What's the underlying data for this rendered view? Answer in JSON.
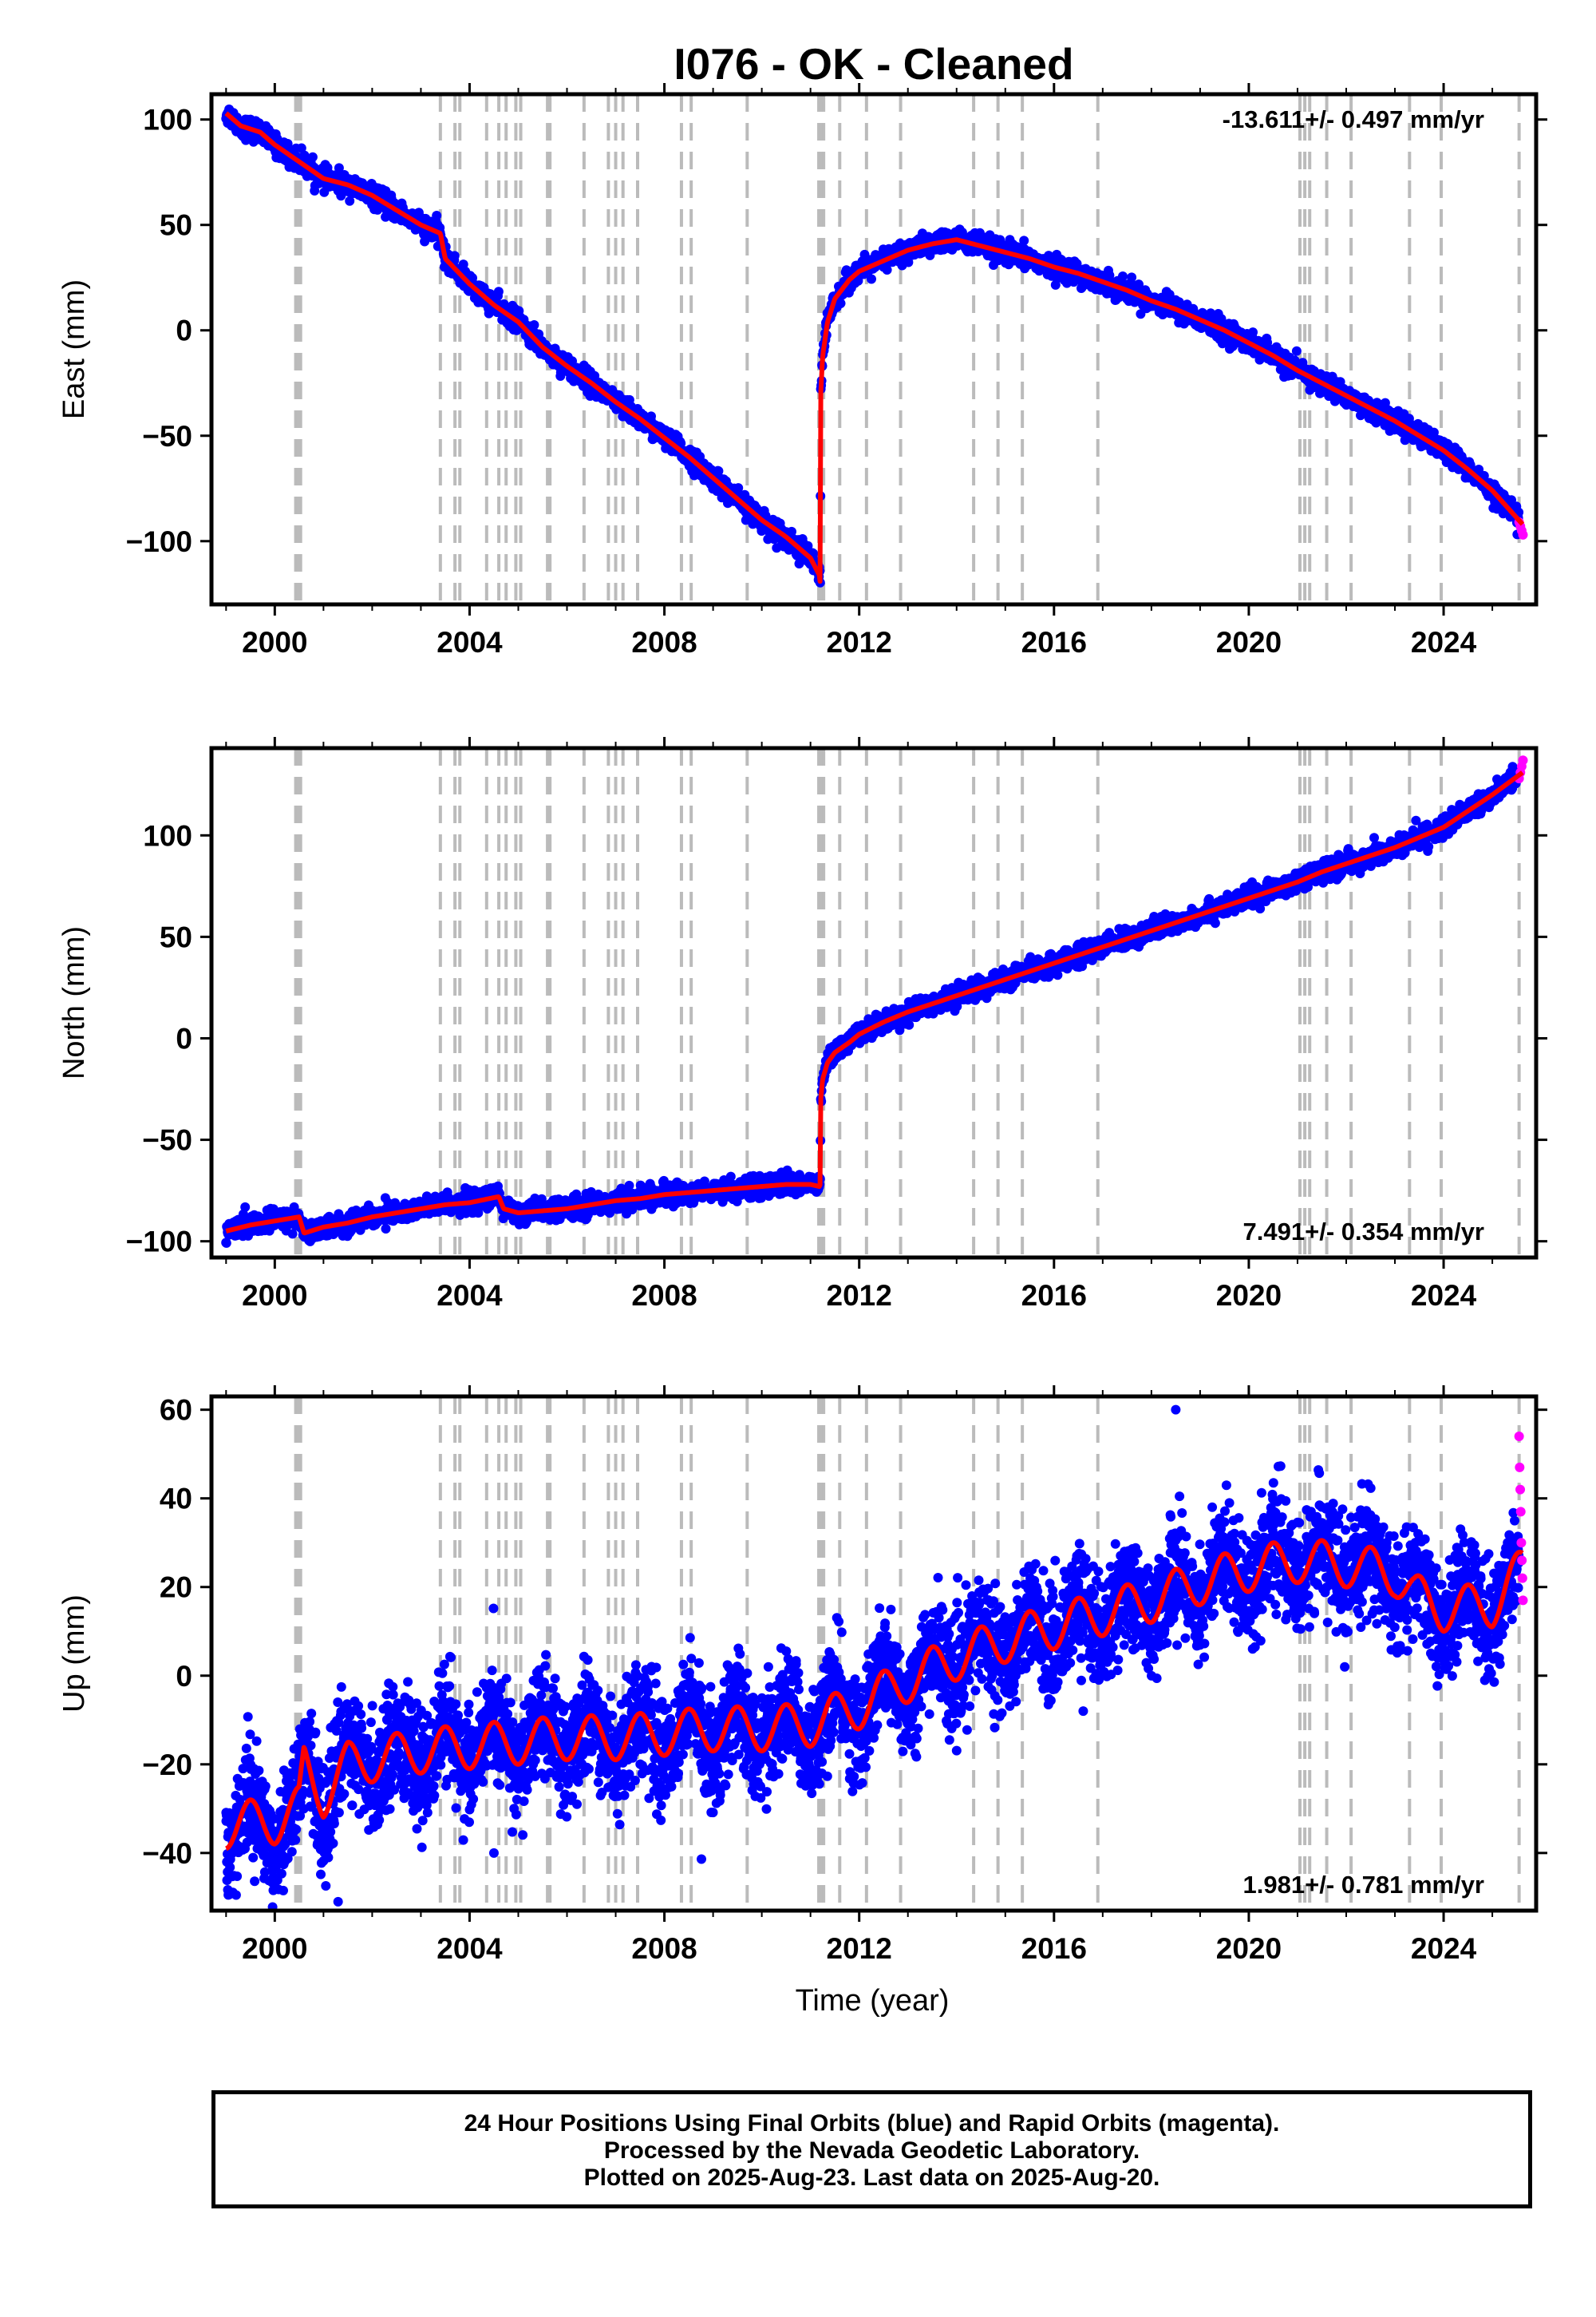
{
  "title": "I076  - OK - Cleaned",
  "xlabel": "Time (year)",
  "footer": {
    "line1": "24 Hour Positions Using Final Orbits (blue) and Rapid Orbits (magenta).",
    "line2": "Processed by the Nevada Geodetic Laboratory.",
    "line3": "Plotted on 2025-Aug-23. Last data on 2025-Aug-20."
  },
  "colors": {
    "final_orbits": "#0000ff",
    "rapid_orbits": "#ff00ff",
    "model": "#ff0000",
    "events": "#bbbbbb"
  },
  "chart_data": [
    {
      "type": "scatter",
      "component": "east",
      "ylabel": "East (mm)",
      "rate_text": "-13.611+/- 0.497 mm/yr",
      "rate_position": "top-right",
      "xlim": [
        1998.7,
        2025.9
      ],
      "ylim": [
        -130,
        112
      ],
      "xticks": [
        2000,
        2004,
        2008,
        2012,
        2016,
        2020,
        2024
      ],
      "yticks": [
        -100,
        -50,
        0,
        50,
        100
      ],
      "grid": false,
      "noise_mm": 2.5,
      "final_orbits_range": [
        1999.0,
        2025.55
      ],
      "rapid_orbits_range": [
        2025.55,
        2025.63
      ],
      "model_line": {
        "x": [
          1999.0,
          1999.3,
          1999.7,
          2000.0,
          2000.5,
          2001.0,
          2001.5,
          2002.0,
          2002.5,
          2003.0,
          2003.4,
          2003.5,
          2004.0,
          2004.5,
          2005.0,
          2005.5,
          2006.0,
          2006.5,
          2007.0,
          2007.5,
          2008.0,
          2008.5,
          2009.0,
          2009.5,
          2010.0,
          2010.5,
          2011.0,
          2011.18,
          2011.2,
          2011.21,
          2011.25,
          2011.35,
          2011.5,
          2011.8,
          2012.0,
          2012.5,
          2013.0,
          2013.5,
          2014.0,
          2014.5,
          2015.0,
          2015.5,
          2016.0,
          2016.5,
          2017.0,
          2017.5,
          2018.0,
          2018.5,
          2019.0,
          2019.5,
          2020.0,
          2020.5,
          2021.0,
          2021.5,
          2022.0,
          2022.5,
          2023.0,
          2023.5,
          2024.0,
          2024.5,
          2025.0,
          2025.62
        ],
        "y": [
          103,
          97,
          94,
          88,
          80,
          72,
          69,
          64,
          57,
          50,
          46,
          34,
          22,
          12,
          4,
          -8,
          -17,
          -25,
          -34,
          -42,
          -51,
          -60,
          -70,
          -80,
          -90,
          -98,
          -108,
          -116,
          -120,
          -30,
          -12,
          4,
          15,
          24,
          28,
          33,
          38,
          41,
          43,
          40,
          37,
          34,
          30,
          27,
          23,
          19,
          14,
          10,
          5,
          0,
          -6,
          -12,
          -19,
          -25,
          -31,
          -37,
          -43,
          -50,
          -57,
          -66,
          -76,
          -92
        ]
      },
      "rapid_values": [
        -91,
        -93,
        -95,
        -97
      ]
    },
    {
      "type": "scatter",
      "component": "north",
      "ylabel": "North (mm)",
      "rate_text": "7.491+/- 0.354 mm/yr",
      "rate_position": "bottom-right",
      "xlim": [
        1998.7,
        2025.9
      ],
      "ylim": [
        -108,
        143
      ],
      "xticks": [
        2000,
        2004,
        2008,
        2012,
        2016,
        2020,
        2024
      ],
      "yticks": [
        -100,
        -50,
        0,
        50,
        100
      ],
      "grid": false,
      "noise_mm": 2.5,
      "final_orbits_range": [
        1999.0,
        2025.55
      ],
      "rapid_orbits_range": [
        2025.55,
        2025.63
      ],
      "model_line": {
        "x": [
          1999.0,
          1999.5,
          2000.0,
          2000.5,
          2000.6,
          2001.0,
          2001.5,
          2002.0,
          2002.5,
          2003.0,
          2003.5,
          2004.0,
          2004.6,
          2004.7,
          2005.0,
          2005.5,
          2006.0,
          2006.5,
          2007.0,
          2007.5,
          2008.0,
          2008.5,
          2009.0,
          2009.5,
          2010.0,
          2010.5,
          2011.0,
          2011.18,
          2011.2,
          2011.21,
          2011.25,
          2011.35,
          2011.5,
          2011.8,
          2012.0,
          2012.5,
          2013.0,
          2013.5,
          2014.0,
          2014.5,
          2015.0,
          2015.5,
          2016.0,
          2016.5,
          2017.0,
          2017.5,
          2018.0,
          2018.5,
          2019.0,
          2019.5,
          2020.0,
          2020.5,
          2021.0,
          2021.5,
          2022.0,
          2022.5,
          2023.0,
          2023.5,
          2024.0,
          2024.5,
          2025.0,
          2025.62
        ],
        "y": [
          -95,
          -92,
          -90,
          -88,
          -96,
          -93,
          -91,
          -88,
          -86,
          -84,
          -82,
          -81,
          -78,
          -84,
          -86,
          -85,
          -84,
          -82,
          -80,
          -79,
          -77,
          -76,
          -75,
          -74,
          -73,
          -72,
          -72,
          -73,
          -72,
          -30,
          -20,
          -12,
          -7,
          -2,
          2,
          8,
          13,
          17,
          21,
          25,
          29,
          33,
          37,
          41,
          45,
          49,
          53,
          57,
          61,
          65,
          69,
          73,
          77,
          82,
          86,
          90,
          94,
          99,
          104,
          112,
          120,
          131
        ]
      },
      "rapid_values": [
        128,
        131,
        134,
        137
      ]
    },
    {
      "type": "scatter",
      "component": "up",
      "ylabel": "Up (mm)",
      "rate_text": "1.981+/- 0.781 mm/yr",
      "rate_position": "bottom-right",
      "xlim": [
        1998.7,
        2025.9
      ],
      "ylim": [
        -53,
        63
      ],
      "xticks": [
        2000,
        2004,
        2008,
        2012,
        2016,
        2020,
        2024
      ],
      "yticks": [
        -40,
        -20,
        0,
        20,
        40,
        60
      ],
      "grid": false,
      "noise_mm": 6,
      "final_orbits_range": [
        1999.0,
        2025.55
      ],
      "rapid_orbits_range": [
        2025.55,
        2025.63
      ],
      "model_line": {
        "x": [
          1999.0,
          1999.5,
          2000.0,
          2000.5,
          2000.6,
          2001.0,
          2001.3,
          2001.5,
          2002.0,
          2003.0,
          2004.0,
          2005.0,
          2006.0,
          2007.0,
          2008.0,
          2009.0,
          2010.0,
          2011.0,
          2012.0,
          2013.0,
          2014.0,
          2015.0,
          2016.0,
          2017.0,
          2018.0,
          2019.0,
          2020.0,
          2021.0,
          2022.0,
          2023.0,
          2023.4,
          2024.0,
          2025.0,
          2025.62
        ],
        "y": [
          -34,
          -33,
          -33,
          -30,
          -20,
          -27,
          -23,
          -20,
          -19,
          -17,
          -16,
          -15,
          -14,
          -14,
          -13,
          -12,
          -12,
          -11,
          -7,
          -1,
          4,
          8,
          11,
          14,
          17,
          21,
          24,
          26,
          25,
          23,
          18,
          15,
          16,
          24
        ]
      },
      "seasonal_amplitude_mm": 5,
      "outliers": [
        {
          "x": 2018.5,
          "y": 60
        },
        {
          "x": 2004.5,
          "y": -40
        },
        {
          "x": 2001.3,
          "y": -51
        },
        {
          "x": 2016.6,
          "y": -8
        }
      ],
      "rapid_values": [
        54,
        47,
        42,
        37,
        30,
        26,
        22,
        17
      ]
    }
  ],
  "event_lines": [
    2000.43,
    2000.48,
    2000.53,
    2003.4,
    2003.7,
    2003.8,
    2004.35,
    2004.6,
    2004.75,
    2004.95,
    2005.05,
    2005.6,
    2005.65,
    2006.35,
    2006.85,
    2007.0,
    2007.15,
    2007.45,
    2008.35,
    2008.55,
    2009.7,
    2011.17,
    2011.22,
    2011.27,
    2011.6,
    2012.15,
    2012.85,
    2014.35,
    2014.85,
    2015.35,
    2016.9,
    2021.05,
    2021.15,
    2021.25,
    2021.6,
    2022.1,
    2023.3,
    2023.95,
    2025.55
  ]
}
